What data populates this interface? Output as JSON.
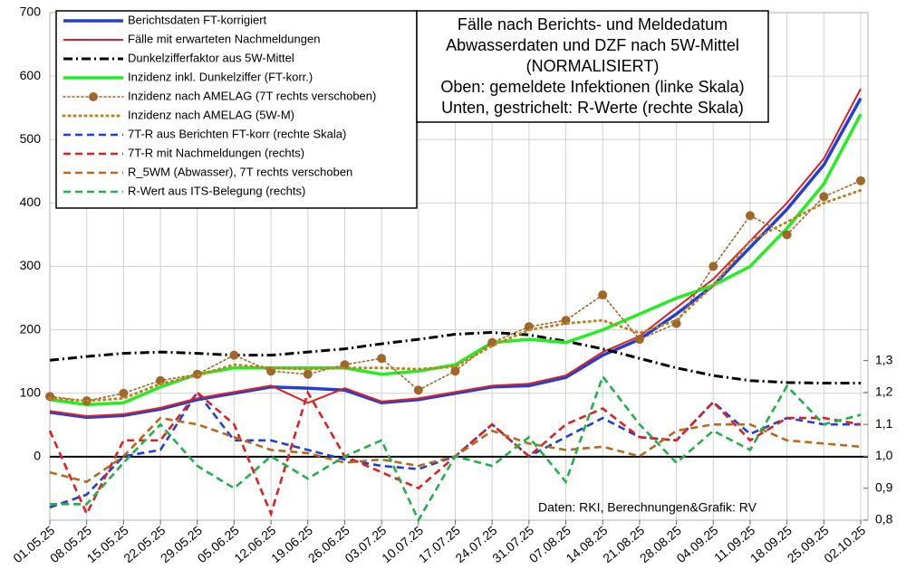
{
  "chart_data": {
    "type": "line",
    "title": [
      "Fälle nach Berichts- und Meldedatum",
      "Abwasserdaten und DZF nach 5W-Mittel",
      "(NORMALISIERT)",
      "Oben: gemeldete Infektionen (linke Skala)",
      "Unten, gestrichelt: R-Werte (rechte Skala)"
    ],
    "annotation": "Daten: RKI, Berechnungen&Grafik: RV",
    "categories": [
      "01.05.25",
      "08.05.25",
      "15.05.25",
      "22.05.25",
      "29.05.25",
      "05.06.25",
      "12.06.25",
      "19.06.25",
      "26.06.25",
      "03.07.25",
      "10.07.25",
      "17.07.25",
      "24.07.25",
      "31.07.25",
      "07.08.25",
      "14.08.25",
      "21.08.25",
      "28.08.25",
      "04.09.25",
      "11.09.25",
      "18.09.25",
      "25.09.25",
      "02.10.25"
    ],
    "ylim": [
      -100,
      700
    ],
    "yticks": [
      0,
      100,
      200,
      300,
      400,
      500,
      600,
      700
    ],
    "y2lim": [
      0.8,
      2.39
    ],
    "y2ticks": [
      {
        "value": 0.8,
        "label": "0,8"
      },
      {
        "value": 0.9,
        "label": "0,9"
      },
      {
        "value": 1.0,
        "label": "1,0"
      },
      {
        "value": 1.1,
        "label": "1,1"
      },
      {
        "value": 1.2,
        "label": "1,2"
      },
      {
        "value": 1.3,
        "label": "1,3"
      }
    ],
    "grid": true,
    "legend": "upper left",
    "series": [
      {
        "name": "Berichtsdaten FT-korrigiert",
        "color": "#1f3fd8",
        "style": "solid-bold",
        "values": [
          70,
          62,
          65,
          75,
          90,
          100,
          110,
          108,
          105,
          85,
          90,
          100,
          110,
          112,
          125,
          160,
          185,
          225,
          270,
          330,
          390,
          460,
          565
        ]
      },
      {
        "name": "Fälle mit erwarteten Nachmeldungen",
        "color": "#e02020",
        "style": "solid",
        "values": [
          72,
          64,
          67,
          77,
          92,
          102,
          112,
          85,
          108,
          87,
          92,
          102,
          112,
          115,
          128,
          165,
          190,
          235,
          280,
          340,
          400,
          470,
          580
        ]
      },
      {
        "name": "Dunkelzifferfaktor aus 5W-Mittel",
        "color": "#000000",
        "style": "dashdot",
        "values": [
          152,
          158,
          163,
          165,
          163,
          160,
          160,
          165,
          170,
          178,
          185,
          193,
          196,
          192,
          182,
          170,
          155,
          140,
          128,
          120,
          117,
          116,
          116
        ]
      },
      {
        "name": "Inzidenz inkl. Dunkelziffer (FT-korr.)",
        "color": "#22ee22",
        "style": "solid-bold",
        "values": [
          90,
          82,
          85,
          110,
          130,
          140,
          140,
          140,
          140,
          130,
          135,
          145,
          180,
          185,
          180,
          200,
          225,
          250,
          270,
          300,
          360,
          430,
          540
        ]
      },
      {
        "name": "Inzidenz nach AMELAG (7T rechts verschoben)",
        "color": "#a0672a",
        "style": "dotted",
        "marker": true,
        "values": [
          95,
          88,
          100,
          120,
          130,
          160,
          135,
          130,
          145,
          155,
          105,
          135,
          180,
          205,
          215,
          255,
          185,
          210,
          300,
          380,
          350,
          410,
          435
        ]
      },
      {
        "name": "Inzidenz nach AMELAG (5W-M)",
        "color": "#c08020",
        "style": "dotted-bold",
        "values": [
          92,
          88,
          92,
          115,
          128,
          145,
          140,
          138,
          140,
          140,
          138,
          142,
          175,
          200,
          210,
          215,
          195,
          215,
          270,
          340,
          370,
          400,
          420
        ]
      },
      {
        "name": "7T-R aus Berichten FT-korr (rechte Skala)",
        "color": "#1f3fd8",
        "style": "dashed",
        "axis": "y2",
        "values": [
          0.84,
          0.88,
          1.0,
          1.02,
          1.2,
          1.05,
          1.05,
          1.02,
          0.99,
          0.97,
          0.96,
          1.0,
          1.1,
          1.0,
          1.06,
          1.12,
          1.06,
          1.05,
          1.17,
          1.07,
          1.12,
          1.1,
          1.1
        ]
      },
      {
        "name": "7T-R mit Nachmeldungen (rechts)",
        "color": "#e02020",
        "style": "dashed",
        "axis": "y2",
        "values": [
          1.08,
          0.82,
          1.05,
          1.05,
          1.2,
          1.1,
          0.82,
          1.2,
          1.0,
          0.95,
          0.9,
          1.0,
          1.1,
          1.0,
          1.1,
          1.15,
          1.06,
          1.05,
          1.17,
          1.05,
          1.12,
          1.12,
          1.1
        ]
      },
      {
        "name": "R_5WM (Abwasser), 7T rechts verschoben",
        "color": "#b86a1a",
        "style": "dashed",
        "axis": "y2",
        "values": [
          0.95,
          0.92,
          1.0,
          1.12,
          1.1,
          1.06,
          1.02,
          1.01,
          0.98,
          0.99,
          0.97,
          1.0,
          1.08,
          1.04,
          1.02,
          1.03,
          1.0,
          1.08,
          1.1,
          1.1,
          1.05,
          1.04,
          1.03
        ]
      },
      {
        "name": "R-Wert aus ITS-Belegung (rechts)",
        "color": "#22b04a",
        "style": "dashed",
        "axis": "y2",
        "values": [
          0.85,
          0.85,
          0.98,
          1.1,
          0.97,
          0.9,
          1.0,
          0.93,
          1.0,
          1.05,
          0.8,
          1.0,
          0.97,
          1.06,
          0.92,
          1.25,
          1.1,
          0.98,
          1.08,
          1.02,
          1.22,
          1.1,
          1.13
        ]
      }
    ]
  }
}
